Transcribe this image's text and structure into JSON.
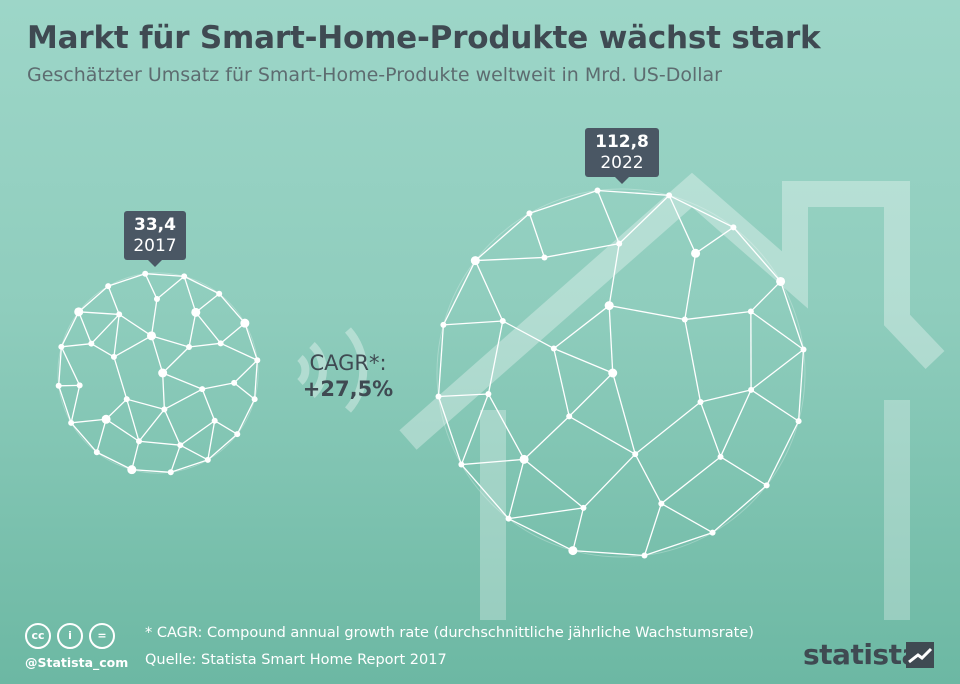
{
  "title": "Markt für Smart-Home-Produkte wächst stark",
  "subtitle": "Geschätzter Umsatz für Smart-Home-Produkte weltweit in Mrd. US-Dollar",
  "chart_data": {
    "type": "bubble",
    "title": "Markt für Smart-Home-Produkte wächst stark",
    "subtitle": "Geschätzter Umsatz für Smart-Home-Produkte weltweit in Mrd. US-Dollar",
    "categories": [
      "2017",
      "2022"
    ],
    "values": [
      33.4,
      112.8
    ],
    "value_labels": [
      "33,4",
      "112,8"
    ],
    "annotation": {
      "label": "CAGR*:",
      "value": "+27,5%"
    }
  },
  "footnote": "* CAGR: Compound annual growth rate (durchschnittliche jährliche Wachstumsrate)",
  "source": "Quelle: Statista Smart Home Report 2017",
  "handle": "@Statista_com",
  "brand": "statista",
  "license_icons": [
    "cc-icon",
    "by-icon",
    "nd-icon"
  ],
  "colors": {
    "tag": "#4a5764",
    "text": "#3f4a52",
    "bg_top": "#9dd6c8",
    "bg_bottom": "#6cb8a3"
  }
}
